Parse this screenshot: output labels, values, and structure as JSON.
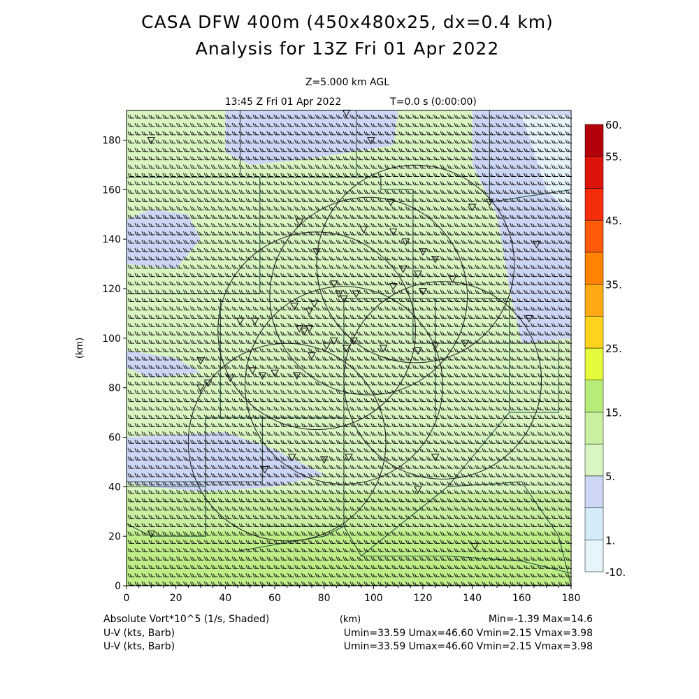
{
  "chart_data": {
    "type": "heatmap",
    "title": "CASA DFW 400m (450x480x25, dx=0.4 km)",
    "subtitle": "Analysis for 13Z Fri 01 Apr 2022",
    "level_label": "Z=5.000 km AGL",
    "time_label": "13:45 Z Fri 01 Apr 2022",
    "elapsed_label": "T=0.0 s (0:00:00)",
    "xlabel": "(km)",
    "ylabel": "(km)",
    "xlim": [
      0,
      180
    ],
    "ylim": [
      0,
      192
    ],
    "x_ticks": [
      "0",
      "20",
      "40",
      "60",
      "80",
      "100",
      "120",
      "140",
      "160",
      "180"
    ],
    "y_ticks": [
      "0",
      "20",
      "40",
      "60",
      "80",
      "100",
      "120",
      "140",
      "160",
      "180"
    ],
    "colorbar": {
      "labels": [
        "60.",
        "55.",
        "45.",
        "35.",
        "25.",
        "15.",
        "5.",
        "1.",
        "-10."
      ],
      "colors": [
        "#e6f5fc",
        "#d4ecf8",
        "#cdd7f5",
        "#d9f5c1",
        "#c8f0a0",
        "#b8ec7a",
        "#e6fa3c",
        "#ffd21e",
        "#ffaa14",
        "#ff8200",
        "#ff5a0a",
        "#f52d0a",
        "#dc140a",
        "#b4000a"
      ]
    },
    "field_label": "Absolute Vort*10^5 (1/s, Shaded)",
    "field_range": "Min=-1.39 Max=14.6",
    "vector_lines": [
      {
        "label": "U-V (kts, Barb)",
        "stats": "Umin=33.59 Umax=46.60 Vmin=2.15 Vmax=3.98"
      },
      {
        "label": "U-V (kts, Barb)",
        "stats": "Umin=33.59 Umax=46.60 Vmin=2.15 Vmax=3.98"
      }
    ]
  }
}
